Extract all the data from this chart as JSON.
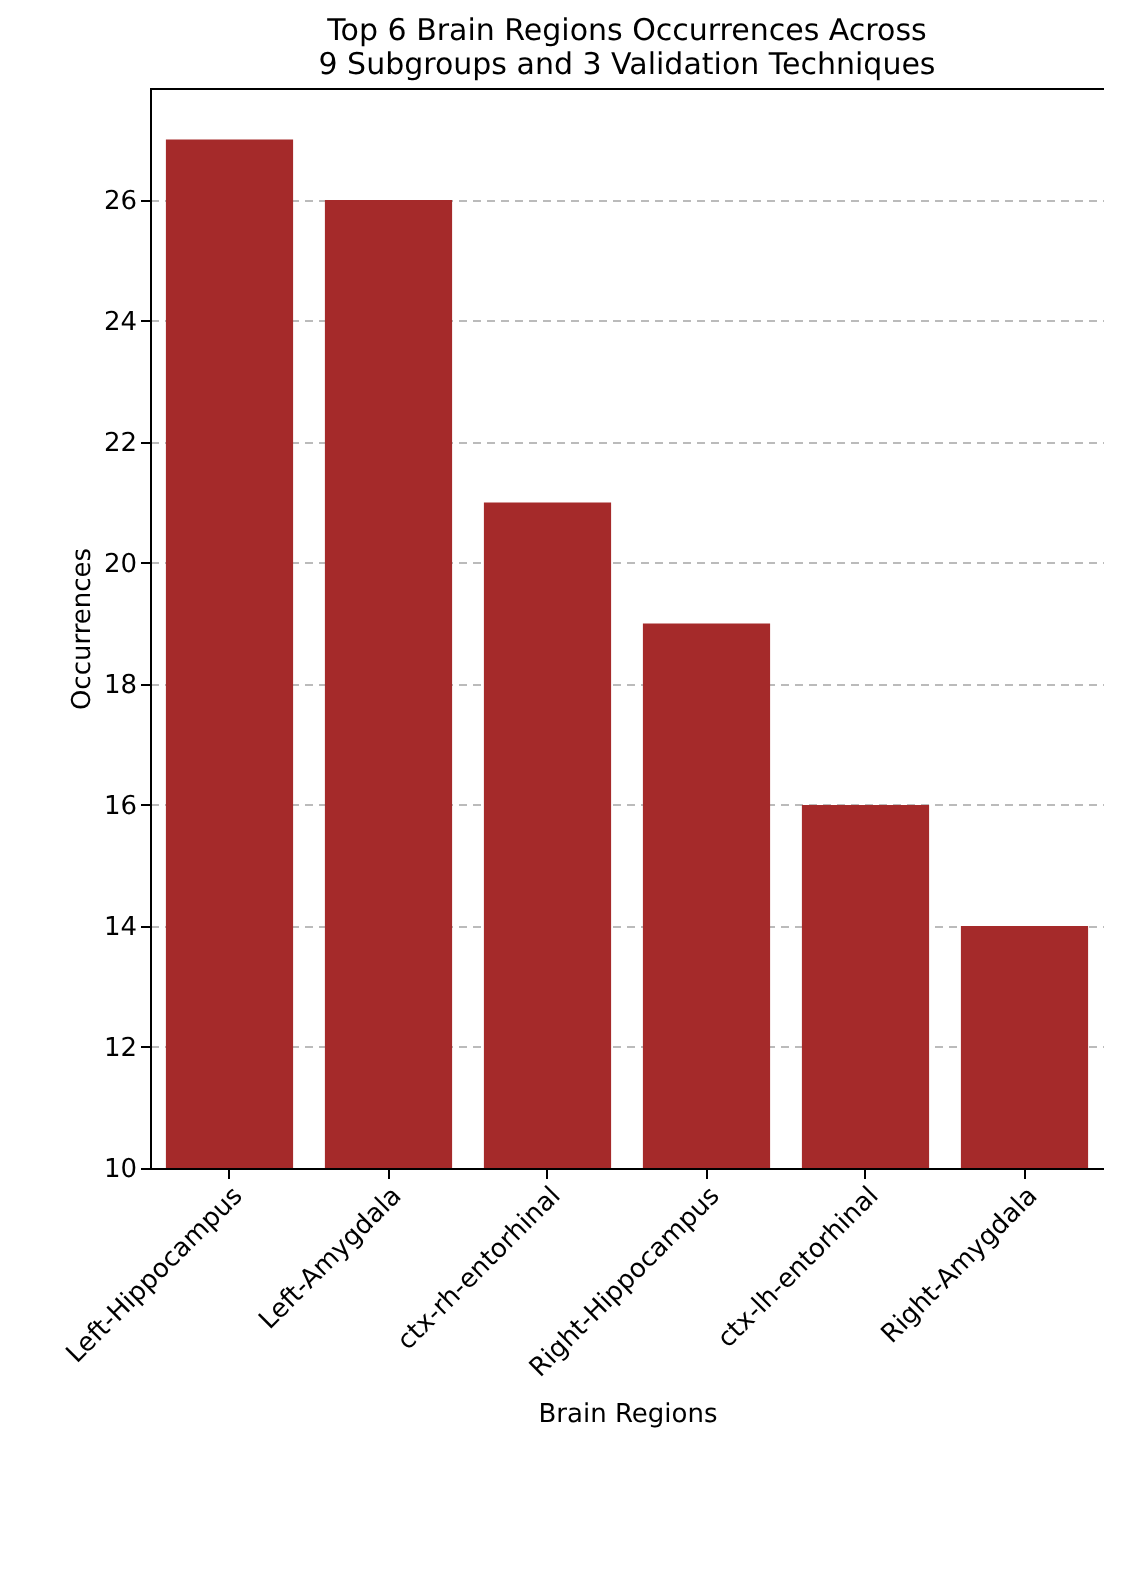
{
  "chart_data": {
    "type": "bar",
    "title": "Top 6 Brain Regions Occurrences Across\n9 Subgroups and 3 Validation Techniques",
    "xlabel": "Brain Regions",
    "ylabel": "Occurrences",
    "categories": [
      "Left-Hippocampus",
      "Left-Amygdala",
      "ctx-rh-entorhinal",
      "Right-Hippocampus",
      "ctx-lh-entorhinal",
      "Right-Amygdala"
    ],
    "values": [
      27,
      26,
      21,
      19,
      16,
      14
    ],
    "color": "#a52a2a",
    "ylim": [
      10,
      27.85
    ],
    "yticks": [
      10,
      12,
      14,
      16,
      18,
      20,
      22,
      24,
      26
    ],
    "grid": "y"
  }
}
